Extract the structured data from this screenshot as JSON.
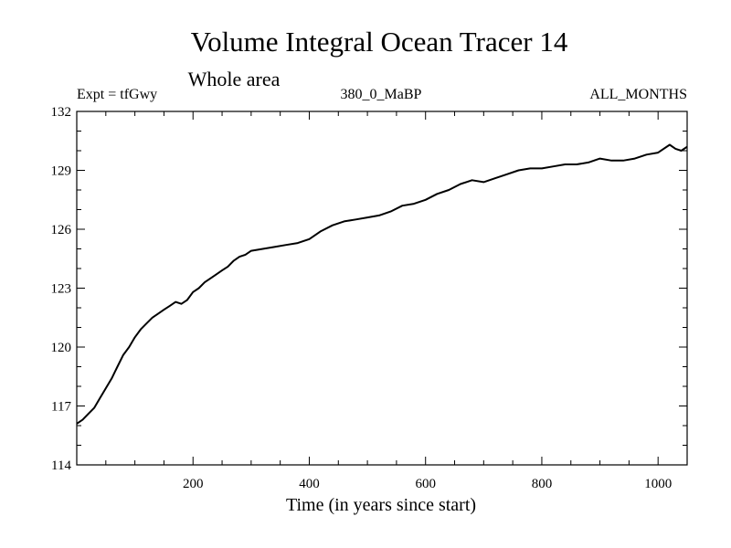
{
  "chart_data": {
    "type": "line",
    "title": "Volume Integral Ocean Tracer 14",
    "subtitle": "Whole area",
    "labels": {
      "left": "Expt = tfGwy",
      "center": "380_0_MaBP",
      "right": "ALL_MONTHS"
    },
    "xlabel": "Time (in years since start)",
    "ylabel": "",
    "xlim": [
      0,
      1050
    ],
    "ylim": [
      114,
      132
    ],
    "x_ticks": [
      200,
      400,
      600,
      800,
      1000
    ],
    "y_ticks": [
      114,
      117,
      120,
      123,
      126,
      129,
      132
    ],
    "grid": false,
    "legend": "none",
    "line_color": "#000000",
    "series": [
      {
        "x": [
          0,
          10,
          20,
          30,
          40,
          50,
          60,
          70,
          80,
          90,
          100,
          110,
          120,
          130,
          140,
          150,
          160,
          170,
          180,
          190,
          200,
          210,
          220,
          230,
          240,
          250,
          260,
          270,
          280,
          290,
          300,
          320,
          340,
          360,
          380,
          400,
          420,
          440,
          460,
          480,
          500,
          520,
          540,
          560,
          580,
          600,
          620,
          640,
          660,
          680,
          700,
          720,
          740,
          760,
          780,
          800,
          820,
          840,
          860,
          880,
          900,
          920,
          940,
          960,
          980,
          1000,
          1020,
          1030,
          1040,
          1050
        ],
        "values": [
          116.1,
          116.3,
          116.6,
          116.9,
          117.4,
          117.9,
          118.4,
          119.0,
          119.6,
          120.0,
          120.5,
          120.9,
          121.2,
          121.5,
          121.7,
          121.9,
          122.1,
          122.3,
          122.2,
          122.4,
          122.8,
          123.0,
          123.3,
          123.5,
          123.7,
          123.9,
          124.1,
          124.4,
          124.6,
          124.7,
          124.9,
          125.0,
          125.1,
          125.2,
          125.3,
          125.5,
          125.9,
          126.2,
          126.4,
          126.5,
          126.6,
          126.7,
          126.9,
          127.2,
          127.3,
          127.5,
          127.8,
          128.0,
          128.3,
          128.5,
          128.4,
          128.6,
          128.8,
          129.0,
          129.1,
          129.1,
          129.2,
          129.3,
          129.3,
          129.4,
          129.6,
          129.5,
          129.5,
          129.6,
          129.8,
          129.9,
          130.3,
          130.1,
          130.0,
          130.2
        ]
      }
    ]
  }
}
